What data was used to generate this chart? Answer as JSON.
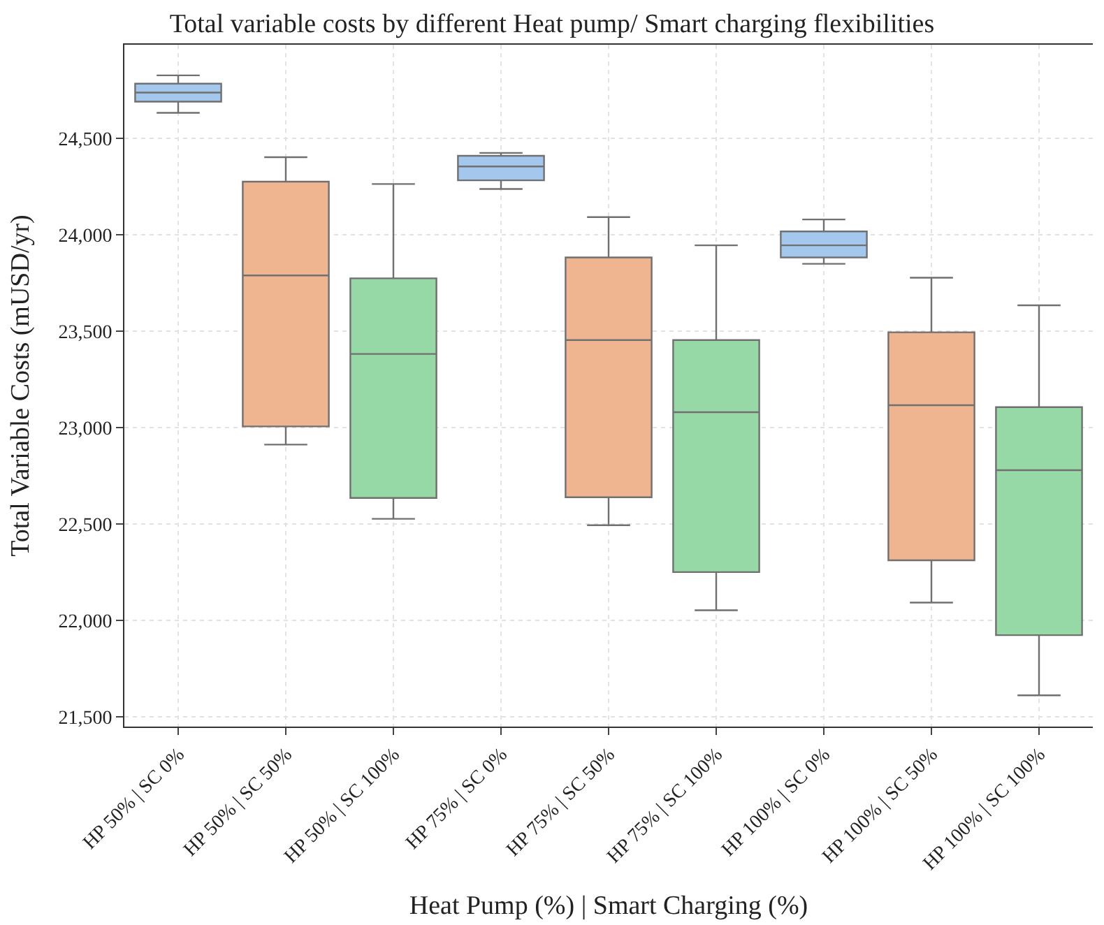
{
  "chart_data": {
    "type": "box",
    "title": "Total variable costs by different Heat pump/ Smart charging flexibilities",
    "xlabel": "Heat Pump (%) | Smart Charging (%)",
    "ylabel": "Total Variable Costs (mUSD/yr)",
    "categories": [
      "HP 50% | SC 0%",
      "HP 50% | SC 50%",
      "HP 50% | SC 100%",
      "HP 75% | SC 0%",
      "HP 75% | SC 50%",
      "HP 75% | SC 100%",
      "HP 100% | SC 0%",
      "HP 100% | SC 50%",
      "HP 100% | SC 100%"
    ],
    "colors": [
      "#a4c7ee",
      "#eeb590",
      "#97d9a6",
      "#a4c7ee",
      "#eeb590",
      "#97d9a6",
      "#a4c7ee",
      "#eeb590",
      "#97d9a6"
    ],
    "boxes": [
      {
        "low": 24632,
        "q1": 24690,
        "median": 24737,
        "q3": 24783,
        "high": 24826
      },
      {
        "low": 22912,
        "q1": 23006,
        "median": 23789,
        "q3": 24275,
        "high": 24402
      },
      {
        "low": 22527,
        "q1": 22635,
        "median": 23382,
        "q3": 23774,
        "high": 24263
      },
      {
        "low": 24237,
        "q1": 24282,
        "median": 24354,
        "q3": 24409,
        "high": 24424
      },
      {
        "low": 22494,
        "q1": 22639,
        "median": 23454,
        "q3": 23882,
        "high": 24091
      },
      {
        "low": 22053,
        "q1": 22251,
        "median": 23080,
        "q3": 23454,
        "high": 23945
      },
      {
        "low": 23849,
        "q1": 23882,
        "median": 23945,
        "q3": 24017,
        "high": 24079
      },
      {
        "low": 22093,
        "q1": 22312,
        "median": 23116,
        "q3": 23494,
        "high": 23777
      },
      {
        "low": 21612,
        "q1": 21924,
        "median": 22779,
        "q3": 23106,
        "high": 23634
      }
    ],
    "ylim": [
      21450,
      24985
    ],
    "yticks": [
      {
        "value": 21500,
        "label": "21,500"
      },
      {
        "value": 22000,
        "label": "22,000"
      },
      {
        "value": 22500,
        "label": "22,500"
      },
      {
        "value": 23000,
        "label": "23,000"
      },
      {
        "value": 23500,
        "label": "23,500"
      },
      {
        "value": 24000,
        "label": "24,000"
      },
      {
        "value": 24500,
        "label": "24,500"
      }
    ],
    "grid": true
  }
}
